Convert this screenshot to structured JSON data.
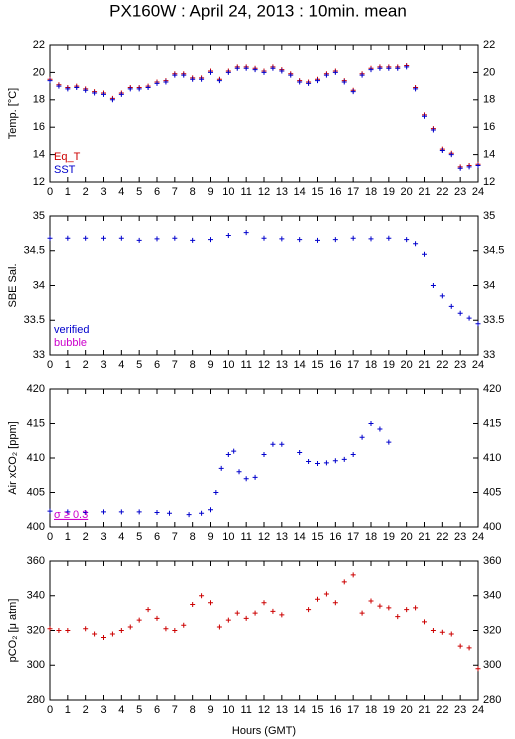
{
  "title": "PX160W : April 24, 2013 : 10min. mean",
  "chart_data": [
    {
      "type": "scatter",
      "ylabel": "Temp. [°C]",
      "xlim": [
        0,
        24
      ],
      "xticks": [
        0,
        1,
        2,
        3,
        4,
        5,
        6,
        7,
        8,
        9,
        10,
        11,
        12,
        13,
        14,
        15,
        16,
        17,
        18,
        19,
        20,
        21,
        22,
        23,
        24
      ],
      "ylim": [
        12,
        22
      ],
      "yticks": [
        12,
        14,
        16,
        18,
        20,
        22
      ],
      "x": [
        0,
        0.5,
        1,
        1.5,
        2,
        2.5,
        3,
        3.5,
        4,
        4.5,
        5,
        5.5,
        6,
        6.5,
        7,
        7.5,
        8,
        8.5,
        9,
        9.5,
        10,
        10.5,
        11,
        11.5,
        12,
        12.5,
        13,
        13.5,
        14,
        14.5,
        15,
        15.5,
        16,
        16.5,
        17,
        17.5,
        18,
        18.5,
        19,
        19.5,
        20,
        20.5,
        21,
        21.5,
        22,
        22.5,
        23,
        23.5,
        24
      ],
      "series": [
        {
          "name": "Eq_T",
          "color": "#cc0000",
          "values": [
            19.5,
            19.1,
            18.9,
            19.0,
            18.8,
            18.6,
            18.5,
            18.1,
            18.5,
            18.9,
            18.9,
            19.0,
            19.3,
            19.4,
            19.9,
            19.9,
            19.6,
            19.6,
            20.1,
            19.5,
            20.1,
            20.4,
            20.4,
            20.3,
            20.1,
            20.4,
            20.2,
            19.9,
            19.4,
            19.3,
            19.5,
            19.9,
            20.1,
            19.4,
            18.7,
            19.9,
            20.3,
            20.4,
            20.4,
            20.4,
            20.5,
            18.9,
            16.9,
            15.9,
            14.4,
            14.1,
            13.1,
            13.2,
            13.3
          ]
        },
        {
          "name": "SST",
          "color": "#0000cc",
          "values": [
            19.4,
            19.0,
            18.8,
            18.9,
            18.7,
            18.5,
            18.4,
            18.0,
            18.4,
            18.8,
            18.8,
            18.9,
            19.2,
            19.3,
            19.8,
            19.8,
            19.5,
            19.5,
            20.0,
            19.4,
            20.0,
            20.3,
            20.3,
            20.2,
            20.0,
            20.3,
            20.1,
            19.8,
            19.3,
            19.2,
            19.4,
            19.8,
            20.0,
            19.3,
            18.6,
            19.8,
            20.2,
            20.3,
            20.3,
            20.3,
            20.4,
            18.8,
            16.8,
            15.8,
            14.3,
            14.0,
            13.0,
            13.1,
            13.2
          ]
        }
      ]
    },
    {
      "type": "scatter",
      "ylabel": "SBE Sal.",
      "xlim": [
        0,
        24
      ],
      "xticks": [
        0,
        1,
        2,
        3,
        4,
        5,
        6,
        7,
        8,
        9,
        10,
        11,
        12,
        13,
        14,
        15,
        16,
        17,
        18,
        19,
        20,
        21,
        22,
        23,
        24
      ],
      "ylim": [
        33,
        35
      ],
      "yticks": [
        33,
        33.5,
        34,
        34.5,
        35
      ],
      "x": [
        0,
        1,
        2,
        3,
        4,
        5,
        6,
        7,
        8,
        9,
        10,
        11,
        12,
        13,
        14,
        15,
        16,
        17,
        18,
        19,
        20,
        20.5,
        21,
        21.5,
        22,
        22.5,
        23,
        23.5,
        24
      ],
      "series": [
        {
          "name": "verified",
          "color": "#0000cc",
          "values": [
            34.68,
            34.68,
            34.68,
            34.68,
            34.68,
            34.65,
            34.67,
            34.68,
            34.65,
            34.66,
            34.72,
            34.76,
            34.68,
            34.67,
            34.66,
            34.65,
            34.66,
            34.68,
            34.67,
            34.68,
            34.66,
            34.6,
            34.45,
            34.0,
            33.85,
            33.7,
            33.6,
            33.53,
            33.45
          ]
        }
      ],
      "annotations": [
        {
          "text": "bubble",
          "color": "#cc00cc"
        }
      ]
    },
    {
      "type": "scatter",
      "ylabel": "Air xCO₂ [ppm]",
      "xlim": [
        0,
        24
      ],
      "xticks": [
        0,
        1,
        2,
        3,
        4,
        5,
        6,
        7,
        8,
        9,
        10,
        11,
        12,
        13,
        14,
        15,
        16,
        17,
        18,
        19,
        20,
        21,
        22,
        23,
        24
      ],
      "ylim": [
        400,
        420
      ],
      "yticks": [
        400,
        405,
        410,
        415,
        420
      ],
      "x": [
        0,
        1,
        2,
        3,
        4,
        5,
        6,
        6.7,
        7.8,
        8.5,
        9,
        9.3,
        9.6,
        10,
        10.3,
        10.6,
        11,
        11.5,
        12,
        12.5,
        13,
        14,
        14.5,
        15,
        15.5,
        16,
        16.5,
        17,
        17.5,
        18,
        18.5,
        19
      ],
      "series": [
        {
          "color": "#0000cc",
          "values": [
            402.3,
            402.2,
            402.1,
            402.2,
            402.2,
            402.2,
            402.1,
            402.0,
            401.8,
            402.0,
            402.5,
            405,
            408.5,
            410.5,
            411,
            408,
            407,
            407.2,
            410.5,
            412,
            412,
            410.8,
            409.5,
            409.2,
            409.3,
            409.6,
            409.8,
            410.5,
            413,
            415,
            414.2,
            412.3
          ]
        }
      ],
      "annotations": [
        {
          "text": "σ ≥ 0.3",
          "color": "#cc00cc"
        }
      ]
    },
    {
      "type": "scatter",
      "ylabel": "pCO₂ [μ atm]",
      "xlabel": "Hours (GMT)",
      "xlim": [
        0,
        24
      ],
      "xticks": [
        0,
        1,
        2,
        3,
        4,
        5,
        6,
        7,
        8,
        9,
        10,
        11,
        12,
        13,
        14,
        15,
        16,
        17,
        18,
        19,
        20,
        21,
        22,
        23,
        24
      ],
      "ylim": [
        280,
        360
      ],
      "yticks": [
        280,
        300,
        320,
        340,
        360
      ],
      "x": [
        0,
        0.5,
        1,
        2,
        2.5,
        3,
        3.5,
        4,
        4.5,
        5,
        5.5,
        6,
        6.5,
        7,
        7.5,
        8,
        8.5,
        9,
        9.5,
        10,
        10.5,
        11,
        11.5,
        12,
        12.5,
        13,
        14.5,
        15,
        15.5,
        16,
        16.5,
        17,
        17.5,
        18,
        18.5,
        19,
        19.5,
        20,
        20.5,
        21,
        21.5,
        22,
        22.5,
        23,
        23.5,
        24
      ],
      "series": [
        {
          "color": "#cc0000",
          "values": [
            321,
            320,
            320,
            321,
            318,
            316,
            318,
            320,
            322,
            326,
            332,
            327,
            321,
            320,
            323,
            335,
            340,
            336,
            322,
            326,
            330,
            327,
            330,
            336,
            331,
            329,
            332,
            338,
            341,
            336,
            348,
            352,
            330,
            337,
            334,
            333,
            328,
            332,
            333,
            325,
            320,
            319,
            318,
            311,
            310,
            298
          ]
        }
      ]
    }
  ]
}
